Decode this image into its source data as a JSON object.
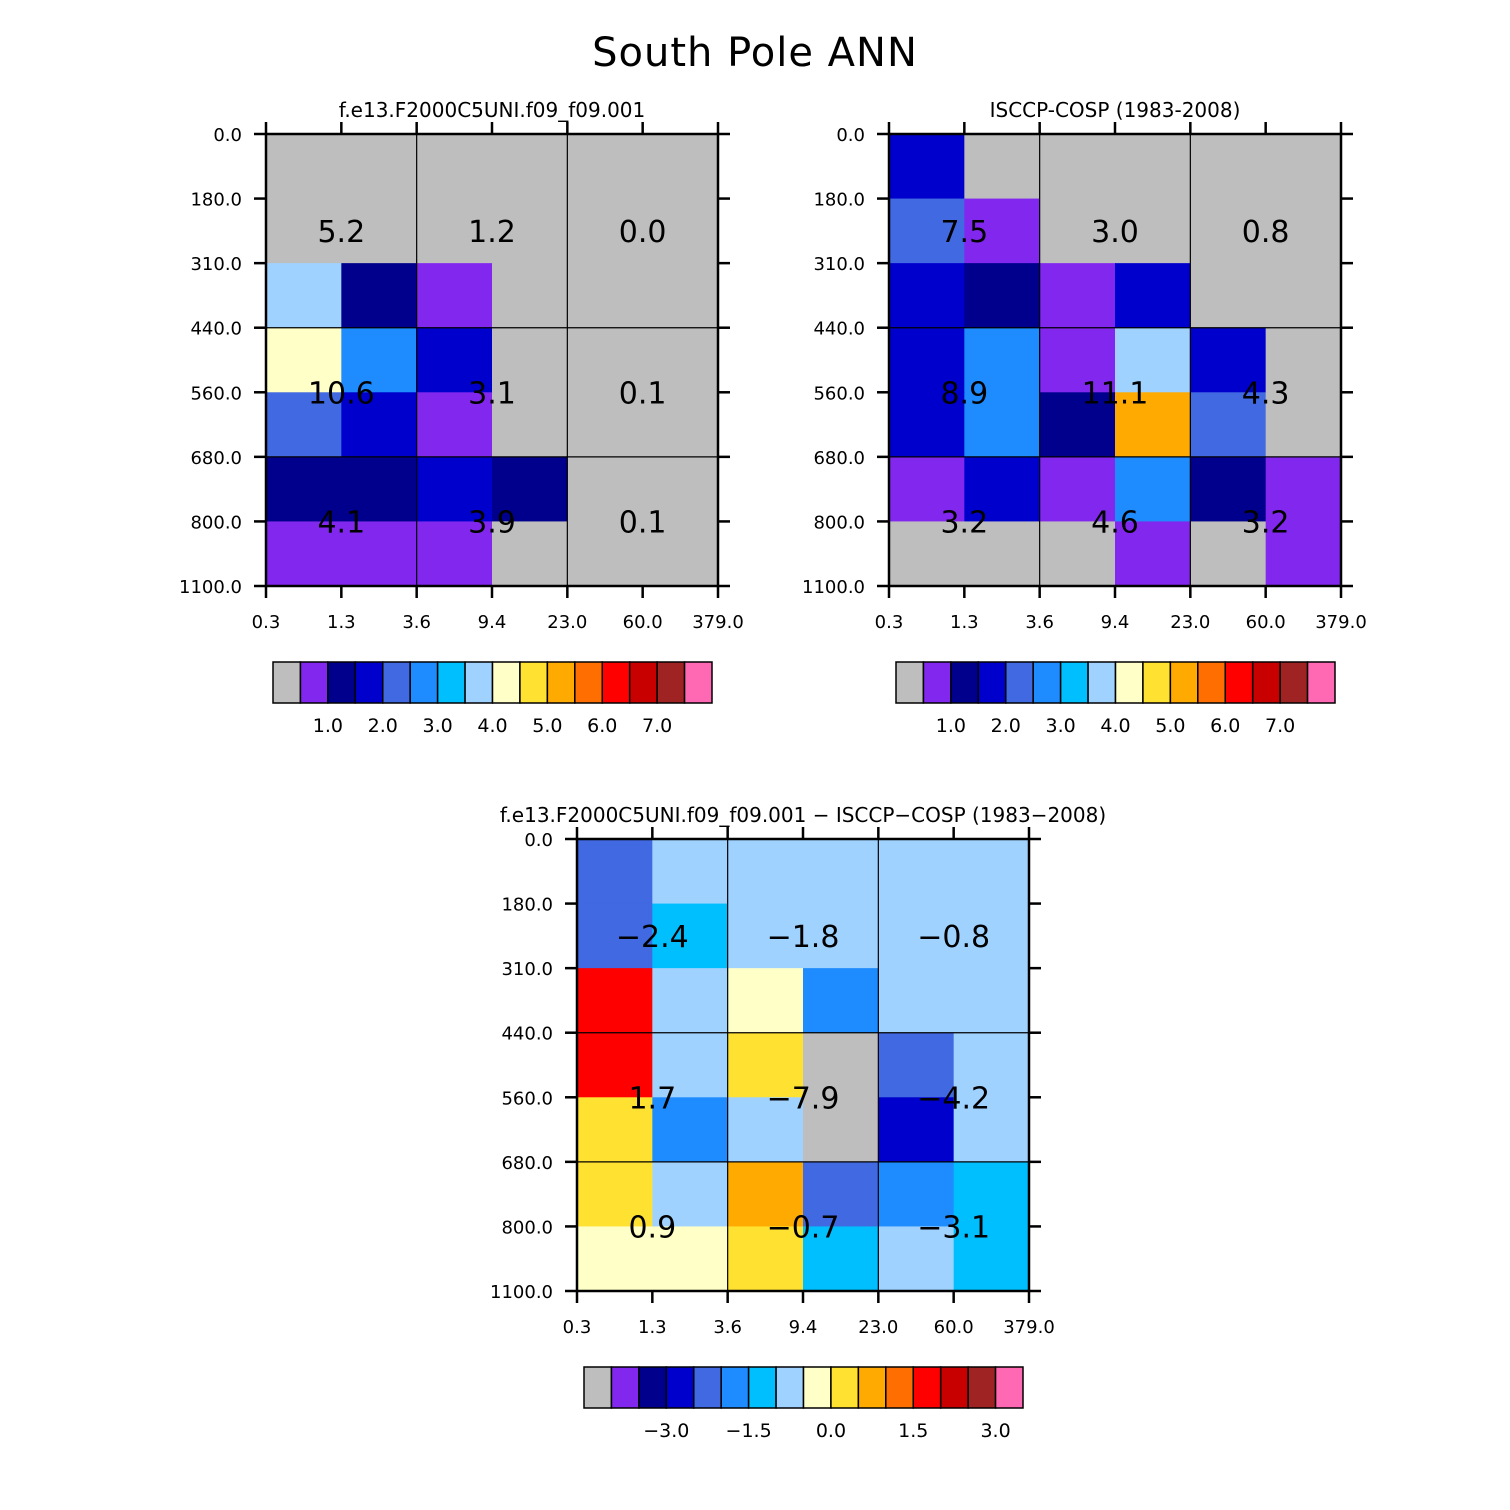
{
  "figure": {
    "title": "South Pole ANN"
  },
  "chart_data": [
    {
      "type": "heatmap",
      "title": "f.e13.F2000C5UNI.f09_f09.001",
      "x_ticks": [
        "0.3",
        "1.3",
        "3.6",
        "9.4",
        "23.0",
        "60.0",
        "379.0"
      ],
      "y_ticks": [
        "0.0",
        "180.0",
        "310.0",
        "440.0",
        "560.0",
        "680.0",
        "800.0",
        "1100.0"
      ],
      "cell_colors": [
        [
          "#bebebe",
          "#bebebe",
          "#bebebe",
          "#bebebe",
          "#bebebe",
          "#bebebe"
        ],
        [
          "#bebebe",
          "#bebebe",
          "#bebebe",
          "#bebebe",
          "#bebebe",
          "#bebebe"
        ],
        [
          "#a0d2ff",
          "#00008c",
          "#8228ee",
          "#bebebe",
          "#bebebe",
          "#bebebe"
        ],
        [
          "#ffffc8",
          "#1e8cff",
          "#0000cd",
          "#bebebe",
          "#bebebe",
          "#bebebe"
        ],
        [
          "#4169e1",
          "#0000cd",
          "#8228ee",
          "#bebebe",
          "#bebebe",
          "#bebebe"
        ],
        [
          "#00008c",
          "#00008c",
          "#0000cd",
          "#00008c",
          "#bebebe",
          "#bebebe"
        ],
        [
          "#8228ee",
          "#8228ee",
          "#8228ee",
          "#bebebe",
          "#bebebe",
          "#bebebe"
        ]
      ],
      "box_values": [
        [
          "5.2",
          "1.2",
          "0.0"
        ],
        [
          "10.6",
          "3.1",
          "0.1"
        ],
        [
          "4.1",
          "3.9",
          "0.1"
        ]
      ],
      "colorbar": {
        "colors": [
          "#bebebe",
          "#8228ee",
          "#00008c",
          "#0000cd",
          "#4169e1",
          "#1e8cff",
          "#00bfff",
          "#a0d2ff",
          "#ffffc8",
          "#ffe132",
          "#ffaa00",
          "#ff6e00",
          "#ff0000",
          "#c80000",
          "#a02323",
          "#ff69b4"
        ],
        "labels": [
          "1.0",
          "2.0",
          "3.0",
          "4.0",
          "5.0",
          "6.0",
          "7.0"
        ]
      }
    },
    {
      "type": "heatmap",
      "title": "ISCCP-COSP (1983-2008)",
      "x_ticks": [
        "0.3",
        "1.3",
        "3.6",
        "9.4",
        "23.0",
        "60.0",
        "379.0"
      ],
      "y_ticks": [
        "0.0",
        "180.0",
        "310.0",
        "440.0",
        "560.0",
        "680.0",
        "800.0",
        "1100.0"
      ],
      "cell_colors": [
        [
          "#0000cd",
          "#bebebe",
          "#bebebe",
          "#bebebe",
          "#bebebe",
          "#bebebe"
        ],
        [
          "#4169e1",
          "#8228ee",
          "#bebebe",
          "#bebebe",
          "#bebebe",
          "#bebebe"
        ],
        [
          "#0000cd",
          "#00008c",
          "#8228ee",
          "#0000cd",
          "#bebebe",
          "#bebebe"
        ],
        [
          "#0000cd",
          "#1e8cff",
          "#8228ee",
          "#a0d2ff",
          "#0000cd",
          "#bebebe"
        ],
        [
          "#0000cd",
          "#1e8cff",
          "#00008c",
          "#ffaa00",
          "#4169e1",
          "#bebebe"
        ],
        [
          "#8228ee",
          "#0000cd",
          "#8228ee",
          "#1e8cff",
          "#00008c",
          "#8228ee"
        ],
        [
          "#bebebe",
          "#bebebe",
          "#bebebe",
          "#8228ee",
          "#bebebe",
          "#8228ee"
        ]
      ],
      "box_values": [
        [
          "7.5",
          "3.0",
          "0.8"
        ],
        [
          "8.9",
          "11.1",
          "4.3"
        ],
        [
          "3.2",
          "4.6",
          "3.2"
        ]
      ],
      "colorbar": {
        "colors": [
          "#bebebe",
          "#8228ee",
          "#00008c",
          "#0000cd",
          "#4169e1",
          "#1e8cff",
          "#00bfff",
          "#a0d2ff",
          "#ffffc8",
          "#ffe132",
          "#ffaa00",
          "#ff6e00",
          "#ff0000",
          "#c80000",
          "#a02323",
          "#ff69b4"
        ],
        "labels": [
          "1.0",
          "2.0",
          "3.0",
          "4.0",
          "5.0",
          "6.0",
          "7.0"
        ]
      }
    },
    {
      "type": "heatmap",
      "title": "f.e13.F2000C5UNI.f09_f09.001 − ISCCP−COSP (1983−2008)",
      "x_ticks": [
        "0.3",
        "1.3",
        "3.6",
        "9.4",
        "23.0",
        "60.0",
        "379.0"
      ],
      "y_ticks": [
        "0.0",
        "180.0",
        "310.0",
        "440.0",
        "560.0",
        "680.0",
        "800.0",
        "1100.0"
      ],
      "cell_colors": [
        [
          "#4169e1",
          "#a0d2ff",
          "#a0d2ff",
          "#a0d2ff",
          "#a0d2ff",
          "#a0d2ff"
        ],
        [
          "#4169e1",
          "#00bfff",
          "#a0d2ff",
          "#a0d2ff",
          "#a0d2ff",
          "#a0d2ff"
        ],
        [
          "#ff0000",
          "#a0d2ff",
          "#ffffc8",
          "#1e8cff",
          "#a0d2ff",
          "#a0d2ff"
        ],
        [
          "#ff0000",
          "#a0d2ff",
          "#ffe132",
          "#bebebe",
          "#4169e1",
          "#a0d2ff"
        ],
        [
          "#ffe132",
          "#1e8cff",
          "#a0d2ff",
          "#bebebe",
          "#0000cd",
          "#a0d2ff"
        ],
        [
          "#ffe132",
          "#a0d2ff",
          "#ffaa00",
          "#4169e1",
          "#1e8cff",
          "#00bfff"
        ],
        [
          "#ffffc8",
          "#ffffc8",
          "#ffe132",
          "#00bfff",
          "#a0d2ff",
          "#00bfff"
        ]
      ],
      "box_values": [
        [
          "−2.4",
          "−1.8",
          "−0.8"
        ],
        [
          "1.7",
          "−7.9",
          "−4.2"
        ],
        [
          "0.9",
          "−0.7",
          "−3.1"
        ]
      ],
      "colorbar": {
        "colors": [
          "#bebebe",
          "#8228ee",
          "#00008c",
          "#0000cd",
          "#4169e1",
          "#1e8cff",
          "#00bfff",
          "#a0d2ff",
          "#ffffc8",
          "#ffe132",
          "#ffaa00",
          "#ff6e00",
          "#ff0000",
          "#c80000",
          "#a02323",
          "#ff69b4"
        ],
        "labels": [
          "−3.0",
          "−1.5",
          "0.0",
          "1.5",
          "3.0"
        ]
      }
    }
  ]
}
